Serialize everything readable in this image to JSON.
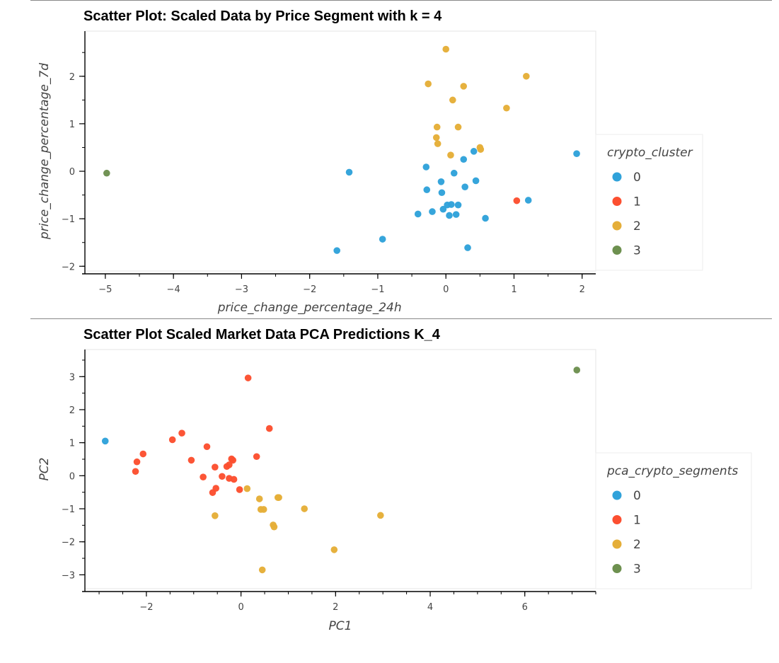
{
  "charts": [
    {
      "id": "chart1",
      "chart_data": {
        "type": "scatter",
        "title": "Scatter Plot: Scaled Data by Price Segment with k = 4",
        "xlabel": "price_change_percentage_24h",
        "ylabel": "price_change_percentage_7d",
        "xlim": [
          -5.3,
          2.2
        ],
        "ylim": [
          -2.1,
          2.95
        ],
        "xticks": [
          -5,
          -4,
          -3,
          -2,
          -1,
          0,
          1,
          2
        ],
        "yticks": [
          -2,
          -1,
          0,
          1,
          2
        ],
        "xtick_labels": [
          "−5",
          "−4",
          "−3",
          "−2",
          "−1",
          "0",
          "1",
          "2"
        ],
        "ytick_labels": [
          "−2",
          "−1",
          "0",
          "1",
          "2"
        ],
        "minor_step": 0.5,
        "legend_title": "crypto_cluster",
        "legend_position": "right",
        "series": [
          {
            "name": "0",
            "color": "#30a2da",
            "points": [
              [
                -1.42,
                -0.02
              ],
              [
                -1.6,
                -1.67
              ],
              [
                -0.93,
                -1.43
              ],
              [
                -0.29,
                0.09
              ],
              [
                -0.28,
                -0.39
              ],
              [
                -0.2,
                -0.85
              ],
              [
                -0.41,
                -0.9
              ],
              [
                -0.07,
                -0.22
              ],
              [
                -0.06,
                -0.45
              ],
              [
                -0.04,
                -0.8
              ],
              [
                0.02,
                -0.71
              ],
              [
                0.05,
                -0.93
              ],
              [
                0.08,
                -0.7
              ],
              [
                0.12,
                -0.04
              ],
              [
                0.15,
                -0.91
              ],
              [
                0.18,
                -0.71
              ],
              [
                0.26,
                0.25
              ],
              [
                0.28,
                -0.33
              ],
              [
                0.32,
                -1.61
              ],
              [
                0.41,
                0.42
              ],
              [
                0.44,
                -0.2
              ],
              [
                0.58,
                -0.99
              ],
              [
                1.21,
                -0.61
              ],
              [
                1.92,
                0.37
              ]
            ]
          },
          {
            "name": "1",
            "color": "#fc4f30",
            "points": [
              [
                1.04,
                -0.62
              ]
            ]
          },
          {
            "name": "2",
            "color": "#e5ae38",
            "points": [
              [
                0.0,
                2.57
              ],
              [
                -0.26,
                1.84
              ],
              [
                0.26,
                1.79
              ],
              [
                0.1,
                1.5
              ],
              [
                1.18,
                2.0
              ],
              [
                0.89,
                1.33
              ],
              [
                -0.13,
                0.93
              ],
              [
                0.18,
                0.93
              ],
              [
                -0.14,
                0.71
              ],
              [
                -0.12,
                0.58
              ],
              [
                0.07,
                0.34
              ],
              [
                0.5,
                0.5
              ],
              [
                0.51,
                0.46
              ]
            ]
          },
          {
            "name": "3",
            "color": "#6d904f",
            "points": [
              [
                -4.98,
                -0.04
              ]
            ]
          }
        ]
      }
    },
    {
      "id": "chart2",
      "chart_data": {
        "type": "scatter",
        "title": "Scatter Plot Scaled Market Data PCA Predictions K_4",
        "xlabel": "PC1",
        "ylabel": "PC2",
        "xlim": [
          -3.3,
          7.5
        ],
        "ylim": [
          -3.42,
          3.82
        ],
        "xticks": [
          -2,
          0,
          2,
          4,
          6
        ],
        "yticks": [
          -3,
          -2,
          -1,
          0,
          1,
          2,
          3
        ],
        "xtick_labels": [
          "−2",
          "0",
          "2",
          "4",
          "6"
        ],
        "ytick_labels": [
          "−3",
          "−2",
          "−1",
          "0",
          "1",
          "2",
          "3"
        ],
        "minor_step": 0.5,
        "legend_title": "pca_crypto_segments",
        "legend_position": "right",
        "series": [
          {
            "name": "0",
            "color": "#30a2da",
            "points": [
              [
                -2.87,
                1.05
              ]
            ]
          },
          {
            "name": "1",
            "color": "#fc4f30",
            "points": [
              [
                -2.23,
                0.13
              ],
              [
                -2.2,
                0.42
              ],
              [
                -2.07,
                0.66
              ],
              [
                -1.45,
                1.09
              ],
              [
                -1.25,
                1.29
              ],
              [
                -1.05,
                0.47
              ],
              [
                -0.8,
                -0.04
              ],
              [
                -0.72,
                0.88
              ],
              [
                -0.6,
                -0.51
              ],
              [
                -0.55,
                0.26
              ],
              [
                -0.53,
                -0.38
              ],
              [
                -0.4,
                -0.02
              ],
              [
                -0.3,
                0.28
              ],
              [
                -0.25,
                0.33
              ],
              [
                -0.25,
                -0.08
              ],
              [
                -0.2,
                0.51
              ],
              [
                -0.17,
                0.47
              ],
              [
                -0.15,
                -0.11
              ],
              [
                -0.03,
                -0.42
              ],
              [
                0.15,
                2.96
              ],
              [
                0.33,
                0.58
              ],
              [
                0.6,
                1.43
              ]
            ]
          },
          {
            "name": "2",
            "color": "#e5ae38",
            "points": [
              [
                -0.55,
                -1.21
              ],
              [
                0.13,
                -0.39
              ],
              [
                0.39,
                -0.7
              ],
              [
                0.42,
                -1.02
              ],
              [
                0.48,
                -1.02
              ],
              [
                0.45,
                -2.85
              ],
              [
                0.68,
                -1.49
              ],
              [
                0.7,
                -1.55
              ],
              [
                0.8,
                -0.66
              ],
              [
                0.78,
                -0.66
              ],
              [
                1.34,
                -1.0
              ],
              [
                1.97,
                -2.24
              ],
              [
                2.95,
                -1.2
              ]
            ]
          },
          {
            "name": "3",
            "color": "#6d904f",
            "points": [
              [
                7.1,
                3.2
              ]
            ]
          }
        ]
      }
    }
  ]
}
